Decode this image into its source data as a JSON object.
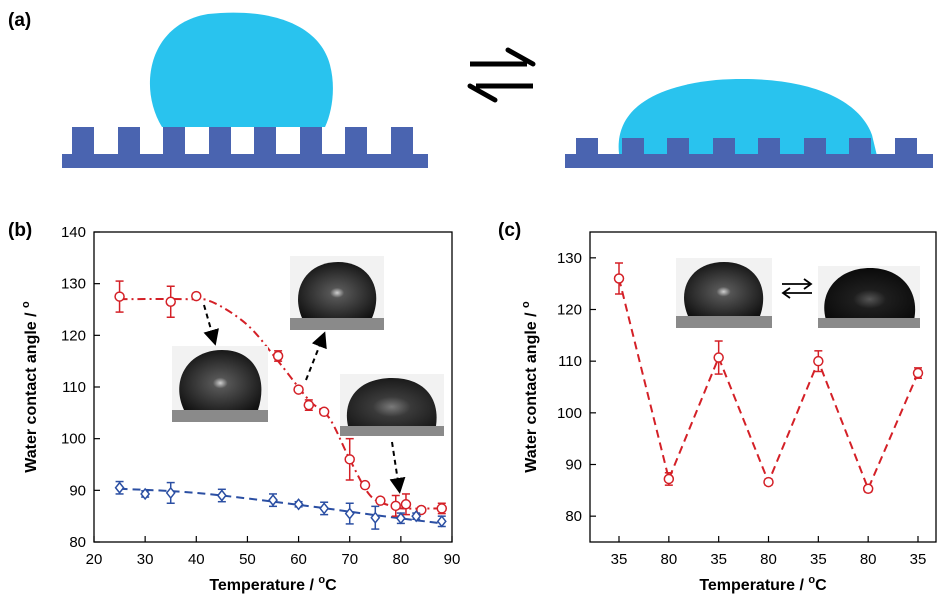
{
  "panels": {
    "a": {
      "label": "(a)"
    },
    "b": {
      "label": "(b)"
    },
    "c": {
      "label": "(c)"
    }
  },
  "colors": {
    "substrate": "#4a64b0",
    "droplet": "#29c3ee",
    "red_series": "#d42027",
    "blue_series": "#2b4fa3"
  },
  "chart_data": [
    {
      "panel": "b",
      "type": "line",
      "xlabel": "Temperature / °C",
      "ylabel": "Water contact angle / °",
      "xlim": [
        20,
        90
      ],
      "ylim": [
        80,
        140
      ],
      "xticks": [
        20,
        30,
        40,
        50,
        60,
        70,
        80,
        90
      ],
      "yticks": [
        80,
        90,
        100,
        110,
        120,
        130,
        140
      ],
      "grid": false,
      "series": [
        {
          "marker": "circle",
          "line": "dash-dot",
          "x": [
            25,
            35,
            40,
            56,
            60,
            62,
            65,
            70,
            73,
            76,
            79,
            81,
            84,
            88
          ],
          "y": [
            127.5,
            126.5,
            127.6,
            116,
            109.5,
            106.5,
            105.2,
            96,
            91,
            88,
            87,
            87.3,
            86.2,
            86.5
          ],
          "err": [
            3,
            3,
            0.5,
            1,
            0.5,
            1,
            0.5,
            4,
            0.5,
            0.5,
            2,
            2,
            0.5,
            1
          ]
        },
        {
          "marker": "diamond",
          "line": "dash",
          "x": [
            25,
            30,
            35,
            45,
            55,
            60,
            65,
            70,
            75,
            80,
            83,
            88
          ],
          "y": [
            90.5,
            89.3,
            89.5,
            89,
            88.1,
            87.3,
            86.5,
            85.5,
            84.7,
            84.6,
            85,
            84
          ],
          "err": [
            1.2,
            0.6,
            2,
            1.2,
            1.2,
            0.5,
            1.2,
            2,
            2.2,
            1,
            0.6,
            1
          ]
        }
      ],
      "trend_red": [
        [
          25,
          127
        ],
        [
          38,
          127
        ],
        [
          43,
          126.5
        ],
        [
          50,
          122
        ],
        [
          56,
          115
        ],
        [
          62,
          107.5
        ],
        [
          66,
          104
        ],
        [
          70,
          96
        ],
        [
          74,
          89
        ],
        [
          78,
          87
        ],
        [
          80,
          86.5
        ],
        [
          88,
          86.5
        ]
      ],
      "trend_blue": [
        [
          25,
          90.3
        ],
        [
          40,
          89.5
        ],
        [
          60,
          87.2
        ],
        [
          75,
          85.2
        ],
        [
          88,
          83.6
        ]
      ]
    },
    {
      "panel": "c",
      "type": "line",
      "xlabel": "Temperature / °C",
      "ylabel": "Water contact angle / °",
      "categories": [
        "35",
        "80",
        "35",
        "80",
        "35",
        "80",
        "35"
      ],
      "ylim": [
        75,
        135
      ],
      "yticks": [
        80,
        90,
        100,
        110,
        120,
        130
      ],
      "grid": false,
      "series": [
        {
          "marker": "circle",
          "line": "dash",
          "values": [
            126,
            87.2,
            110.7,
            86.6,
            110,
            85.3,
            107.7
          ],
          "err": [
            3,
            1.2,
            3.2,
            0.6,
            2,
            0.6,
            1
          ]
        }
      ]
    }
  ]
}
